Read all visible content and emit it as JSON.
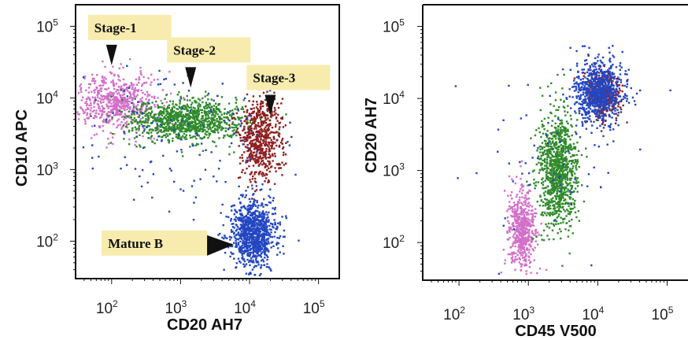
{
  "colors": {
    "stage1": "#d36fc9",
    "stage2": "#2f8a2a",
    "stage3": "#8f1f1f",
    "mature": "#2346c2",
    "label_bg": "#f7ecad",
    "frame": "#111111"
  },
  "chart_data": [
    {
      "type": "scatter",
      "xlabel": "CD20 AH7",
      "ylabel": "CD10 APC",
      "xscale": "log",
      "yscale": "log",
      "xlim": [
        30,
        200000
      ],
      "ylim": [
        30,
        200000
      ],
      "xticks": [
        {
          "base": "10",
          "exp": "2"
        },
        {
          "base": "10",
          "exp": "3"
        },
        {
          "base": "10",
          "exp": "4"
        },
        {
          "base": "10",
          "exp": "5"
        }
      ],
      "yticks": [
        {
          "base": "10",
          "exp": "2"
        },
        {
          "base": "10",
          "exp": "3"
        },
        {
          "base": "10",
          "exp": "4"
        },
        {
          "base": "10",
          "exp": "5"
        }
      ],
      "populations": [
        {
          "name": "Stage-1",
          "color": "stage1",
          "count": 650,
          "center": [
            110,
            9000
          ],
          "spread": [
            0.3,
            0.2
          ]
        },
        {
          "name": "Stage-2",
          "color": "stage2",
          "count": 1000,
          "center": [
            1200,
            5000
          ],
          "spread": [
            0.42,
            0.15
          ]
        },
        {
          "name": "Stage-3",
          "color": "stage3",
          "count": 600,
          "center": [
            14000,
            2800
          ],
          "spread": [
            0.16,
            0.3
          ]
        },
        {
          "name": "Mature B",
          "color": "mature",
          "count": 950,
          "center": [
            11000,
            130
          ],
          "spread": [
            0.16,
            0.22
          ]
        },
        {
          "name": "scatter",
          "color": "mature",
          "count": 130,
          "center": [
            800,
            3000
          ],
          "spread": [
            0.7,
            0.45
          ]
        }
      ],
      "annotations": [
        {
          "label": "Stage-1",
          "x": 100,
          "y": 35000
        },
        {
          "label": "Stage-2",
          "x": 1400,
          "y": 17000
        },
        {
          "label": "Stage-3",
          "x": 20000,
          "y": 7000
        },
        {
          "label": "Mature B",
          "x": 9500,
          "y": 85
        }
      ]
    },
    {
      "type": "scatter",
      "xlabel": "CD45 V500",
      "ylabel": "CD20 AH7",
      "xscale": "log",
      "yscale": "log",
      "xlim": [
        30,
        200000
      ],
      "ylim": [
        30,
        200000
      ],
      "xticks": [
        {
          "base": "10",
          "exp": "2"
        },
        {
          "base": "10",
          "exp": "3"
        },
        {
          "base": "10",
          "exp": "4"
        },
        {
          "base": "10",
          "exp": "5"
        }
      ],
      "yticks": [
        {
          "base": "10",
          "exp": "2"
        },
        {
          "base": "10",
          "exp": "3"
        },
        {
          "base": "10",
          "exp": "4"
        },
        {
          "base": "10",
          "exp": "5"
        }
      ],
      "populations": [
        {
          "name": "Stage-1",
          "color": "stage1",
          "count": 550,
          "center": [
            800,
            150
          ],
          "spread": [
            0.1,
            0.28
          ]
        },
        {
          "name": "Stage-2",
          "color": "stage2",
          "count": 1000,
          "center": [
            2600,
            1000
          ],
          "spread": [
            0.14,
            0.42
          ]
        },
        {
          "name": "Stage-3",
          "color": "stage3",
          "count": 350,
          "center": [
            12000,
            12000
          ],
          "spread": [
            0.12,
            0.18
          ]
        },
        {
          "name": "Mature B",
          "color": "mature",
          "count": 800,
          "center": [
            10000,
            13000
          ],
          "spread": [
            0.17,
            0.22
          ]
        },
        {
          "name": "scatter",
          "color": "mature",
          "count": 60,
          "center": [
            2000,
            1500
          ],
          "spread": [
            0.6,
            0.6
          ]
        }
      ],
      "annotations": []
    }
  ]
}
